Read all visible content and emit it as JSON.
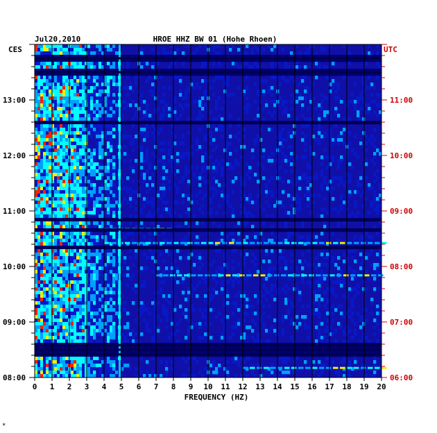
{
  "chart_data": {
    "type": "heatmap",
    "header": {
      "date": "Jul20,2010",
      "station": "HROE HHZ BW 01 (Hohe Rhoen)"
    },
    "left_tz": "CES",
    "right_tz": "UTC",
    "xlabel": "FREQUENCY (HZ)",
    "x_ticks": [
      "0",
      "1",
      "2",
      "3",
      "4",
      "5",
      "6",
      "7",
      "8",
      "9",
      "10",
      "11",
      "12",
      "13",
      "14",
      "15",
      "16",
      "17",
      "18",
      "19",
      "20"
    ],
    "xlim": [
      0,
      20
    ],
    "left_time_ticks": [
      "13:00",
      "12:00",
      "11:00",
      "10:00",
      "09:00",
      "08:00"
    ],
    "right_time_ticks": [
      "11:00",
      "10:00",
      "09:00",
      "08:00",
      "07:00",
      "06:00"
    ],
    "time_range_utc": [
      "06:00",
      "11:55"
    ],
    "colors": {
      "background": "#1010a8",
      "low": "#0818c8",
      "mid": "#00a0ff",
      "high": "#00ffff",
      "peak_yellow": "#f0f000",
      "peak_red": "#ff2000",
      "utc_text": "#d00000"
    },
    "features": [
      {
        "desc": "strong broadband energy",
        "freq_range": [
          0,
          3.0
        ]
      },
      {
        "desc": "persistent narrow line",
        "freq": 4.9
      },
      {
        "desc": "horizontal event band",
        "time_utc": "06:10",
        "freq_range": [
          12,
          20
        ]
      },
      {
        "desc": "horizontal event band",
        "time_utc": "07:50",
        "freq_range": [
          7,
          20
        ]
      },
      {
        "desc": "horizontal event band",
        "time_utc": "08:25",
        "freq_range": [
          4,
          20
        ]
      },
      {
        "desc": "horizontal event band",
        "time_utc": "08:40",
        "freq_range": [
          4,
          8
        ]
      }
    ],
    "gap_rows_utc": [
      "06:25",
      "06:30",
      "06:35",
      "08:20",
      "08:40",
      "08:50",
      "10:35",
      "11:30",
      "11:45"
    ]
  },
  "footer_mark": "*"
}
